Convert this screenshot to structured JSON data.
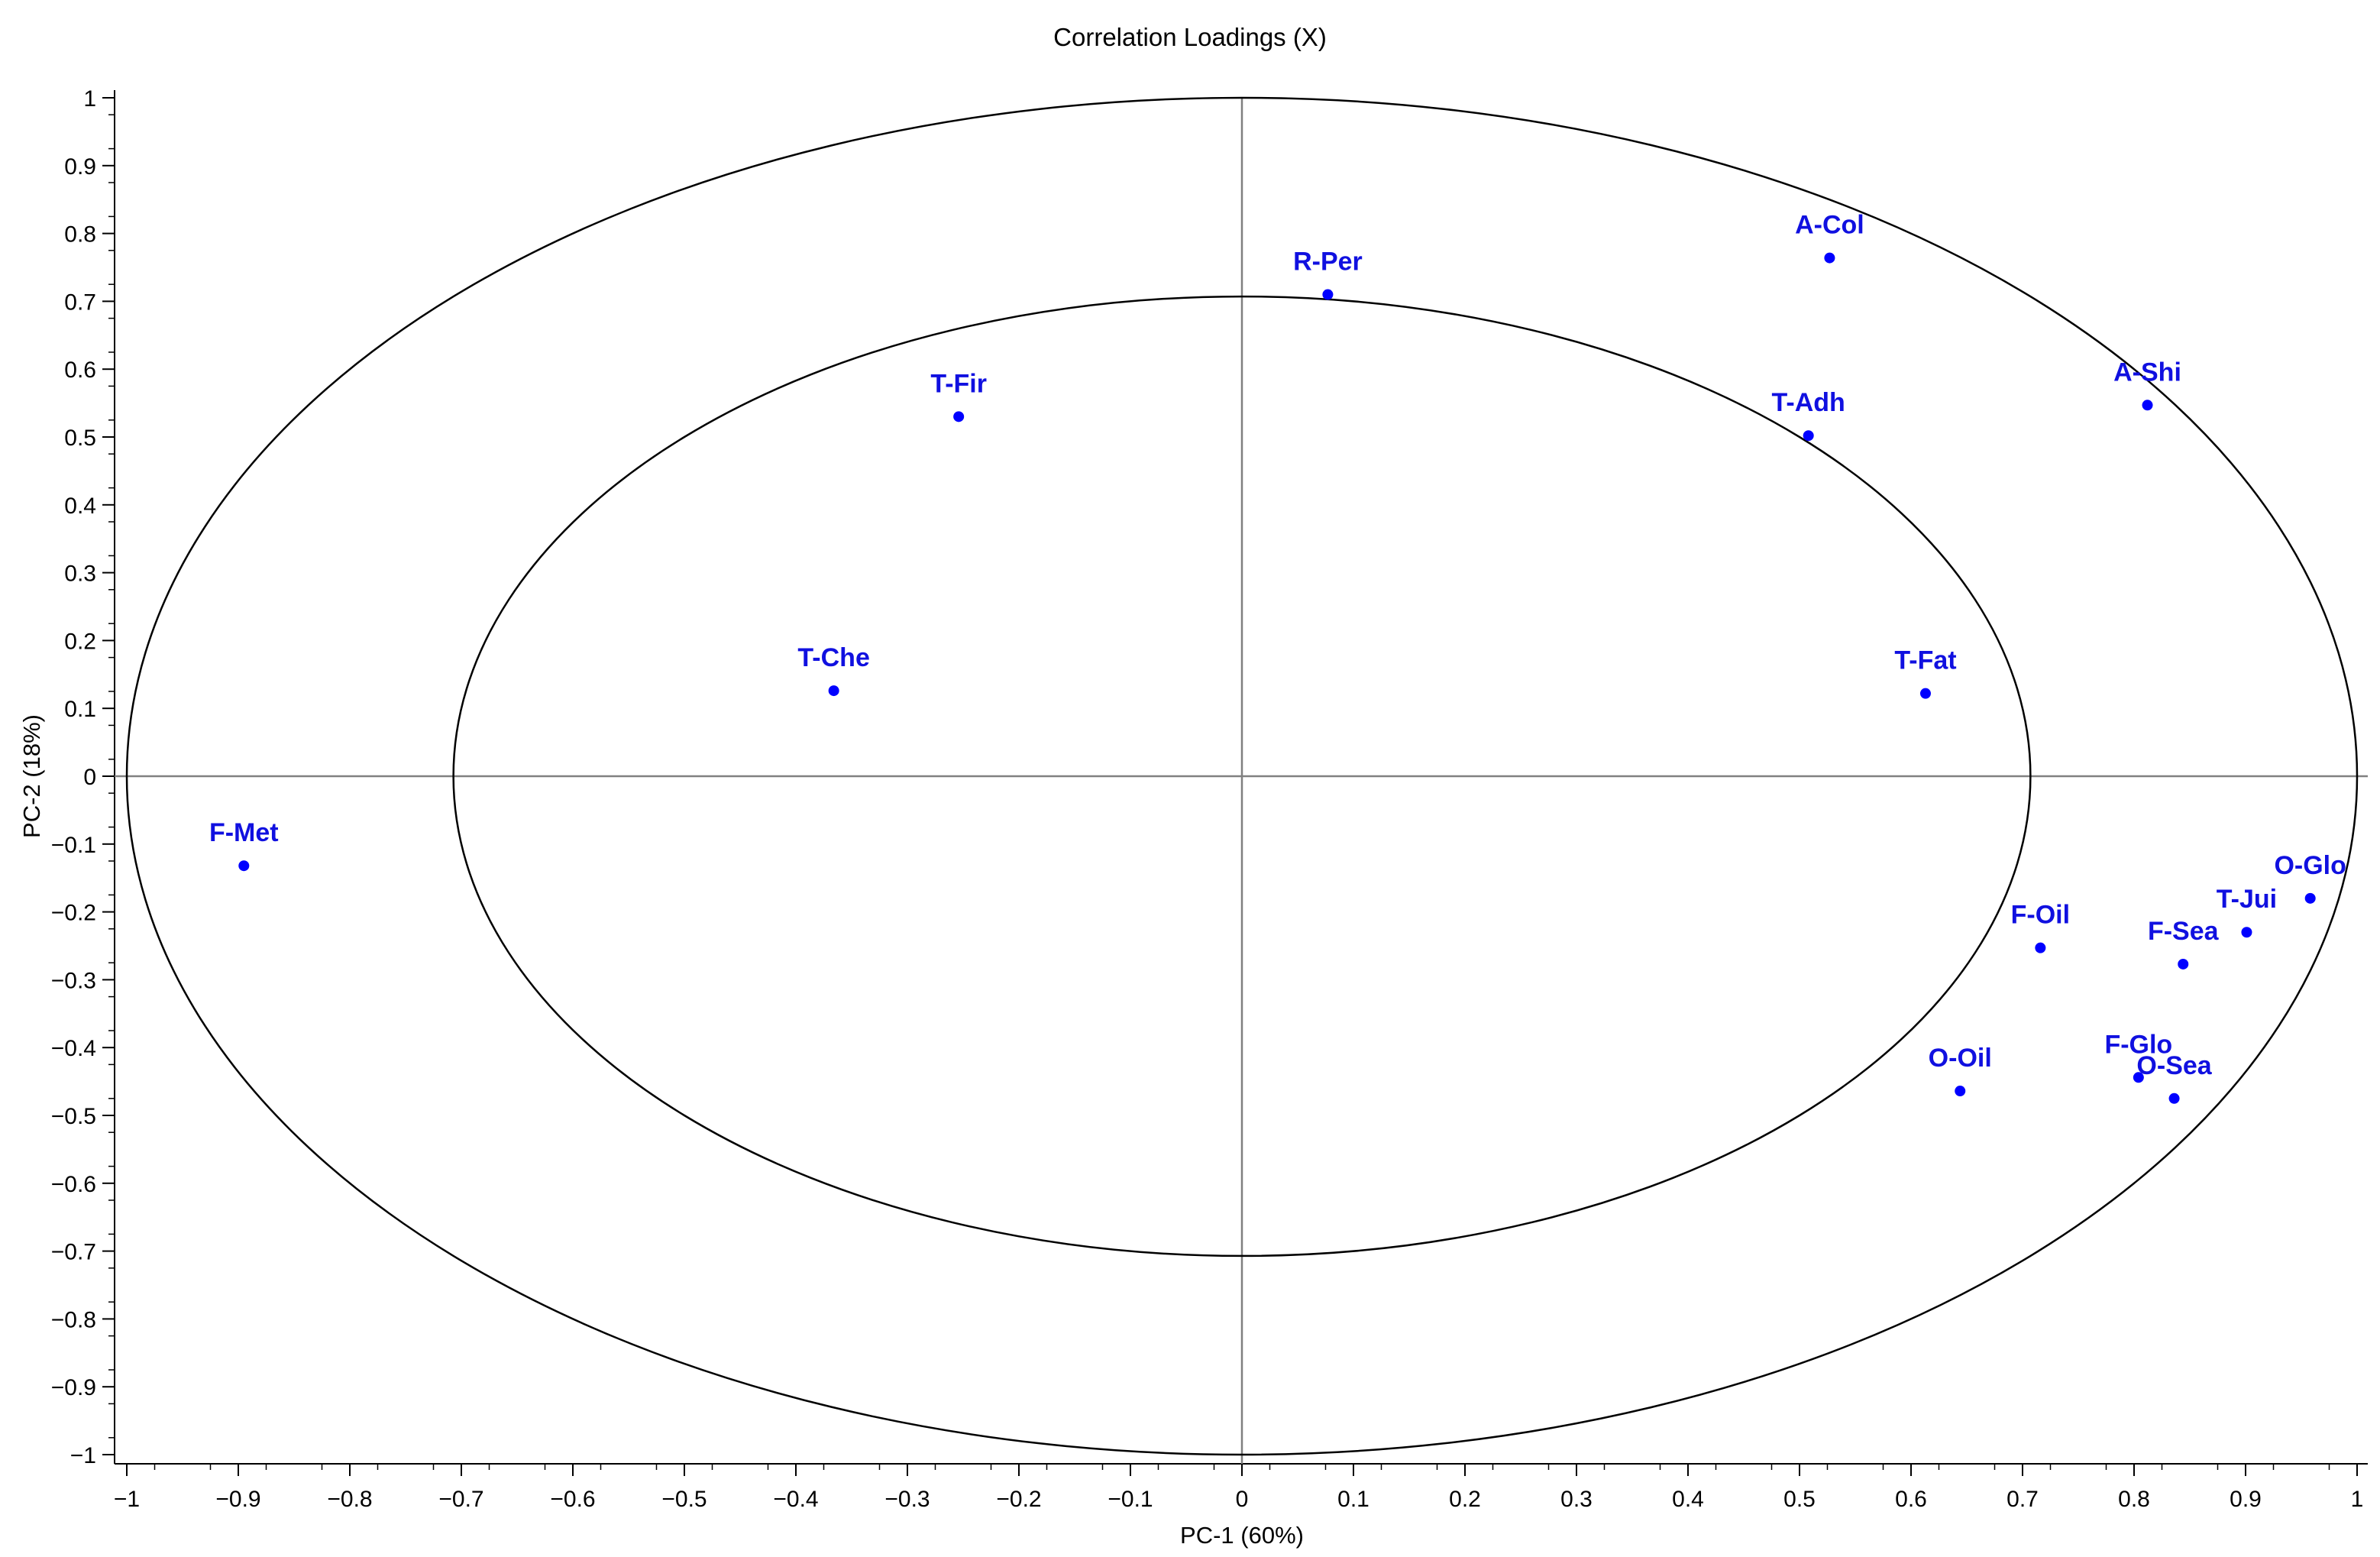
{
  "chart_data": {
    "type": "scatter",
    "title": "Correlation Loadings (X)",
    "xlabel": "PC-1 (60%)",
    "ylabel": "PC-2 (18%)",
    "xlim": [
      -1,
      1
    ],
    "ylim": [
      -1,
      1
    ],
    "x_ticks": [
      -1,
      -0.9,
      -0.8,
      -0.7,
      -0.6,
      -0.5,
      -0.4,
      -0.3,
      -0.2,
      -0.1,
      0,
      0.1,
      0.2,
      0.3,
      0.4,
      0.5,
      0.6,
      0.7,
      0.8,
      0.9,
      1
    ],
    "x_tick_labels": [
      "−1",
      "−0.9",
      "−0.8",
      "−0.7",
      "−0.6",
      "−0.5",
      "−0.4",
      "−0.3",
      "−0.2",
      "−0.1",
      "0",
      "0.1",
      "0.2",
      "0.3",
      "0.4",
      "0.5",
      "0.6",
      "0.7",
      "0.8",
      "0.9",
      "1"
    ],
    "y_ticks": [
      1,
      0.9,
      0.8,
      0.7,
      0.6,
      0.5,
      0.4,
      0.3,
      0.2,
      0.1,
      0,
      -0.1,
      -0.2,
      -0.3,
      -0.4,
      -0.5,
      -0.6,
      -0.7,
      -0.8,
      -0.9,
      -1
    ],
    "y_tick_labels": [
      "1",
      "0.9",
      "0.8",
      "0.7",
      "0.6",
      "0.5",
      "0.4",
      "0.3",
      "0.2",
      "0.1",
      "0",
      "−0.1",
      "−0.2",
      "−0.3",
      "−0.4",
      "−0.5",
      "−0.6",
      "−0.7",
      "−0.8",
      "−0.9",
      "−1"
    ],
    "circles": [
      1.0,
      0.7071
    ],
    "grid": false,
    "point_color": "#0000ff",
    "label_color": "#1010e0",
    "points": [
      {
        "label": "F-Met",
        "x": -0.895,
        "y": -0.132
      },
      {
        "label": "T-Che",
        "x": -0.366,
        "y": 0.126
      },
      {
        "label": "T-Fir",
        "x": -0.254,
        "y": 0.53
      },
      {
        "label": "R-Per",
        "x": 0.077,
        "y": 0.71
      },
      {
        "label": "A-Col",
        "x": 0.527,
        "y": 0.764
      },
      {
        "label": "T-Adh",
        "x": 0.508,
        "y": 0.502
      },
      {
        "label": "A-Shi",
        "x": 0.812,
        "y": 0.547
      },
      {
        "label": "T-Fat",
        "x": 0.613,
        "y": 0.122
      },
      {
        "label": "O-Glo",
        "x": 0.958,
        "y": -0.18
      },
      {
        "label": "T-Jui",
        "x": 0.901,
        "y": -0.23
      },
      {
        "label": "F-Oil",
        "x": 0.716,
        "y": -0.253
      },
      {
        "label": "F-Sea",
        "x": 0.844,
        "y": -0.277
      },
      {
        "label": "O-Oil",
        "x": 0.644,
        "y": -0.464
      },
      {
        "label": "F-Glo",
        "x": 0.804,
        "y": -0.444
      },
      {
        "label": "O-Sea",
        "x": 0.836,
        "y": -0.475
      }
    ]
  }
}
